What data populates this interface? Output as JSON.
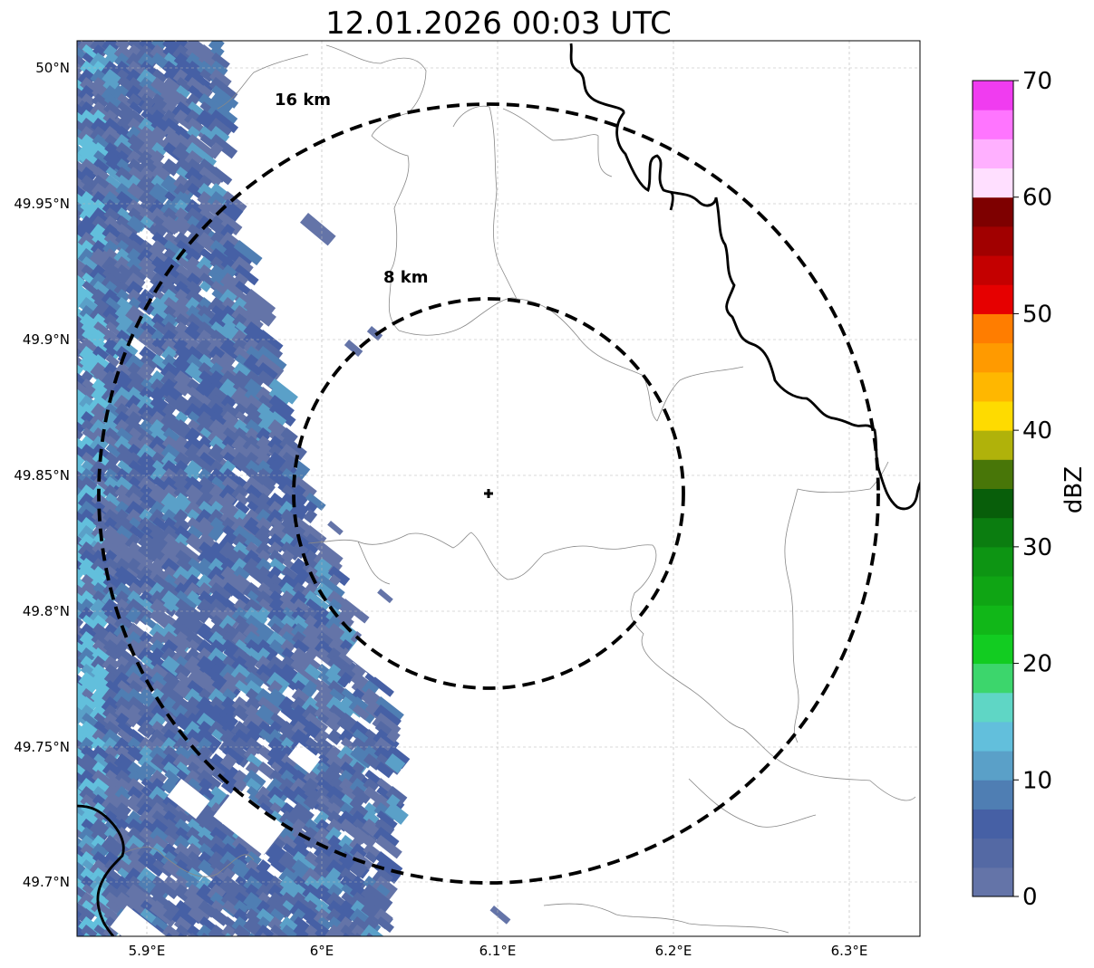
{
  "title": "12.01.2026 00:03 UTC",
  "map": {
    "lon_ticks": [
      "5.9°E",
      "6°E",
      "6.1°E",
      "6.2°E",
      "6.3°E"
    ],
    "lat_ticks": [
      "50°N",
      "49.95°N",
      "49.9°N",
      "49.85°N",
      "49.8°N",
      "49.75°N",
      "49.7°N"
    ],
    "rings": [
      {
        "label": "16 km",
        "radius_km": 16
      },
      {
        "label": "8 km",
        "radius_km": 8
      }
    ],
    "center_marker": "radar-site-cross"
  },
  "colorbar": {
    "label": "dBZ",
    "ticks": [
      "0",
      "10",
      "20",
      "30",
      "40",
      "50",
      "60",
      "70"
    ],
    "colors": [
      "#6474a8",
      "#5469a4",
      "#4660a5",
      "#4f7eb3",
      "#5aa0c8",
      "#62bfdc",
      "#5fd6c5",
      "#3cd66c",
      "#12cc21",
      "#11b718",
      "#0fa514",
      "#0d9513",
      "#0b7d10",
      "#085e0a",
      "#487608",
      "#b0b20a",
      "#fedb00",
      "#ffb700",
      "#ff9a00",
      "#ff7d00",
      "#e60000",
      "#c40000",
      "#a10000",
      "#7e0000",
      "#ffdfff",
      "#ffb0ff",
      "#ff75ff",
      "#f03cf0"
    ]
  },
  "chart_data": {
    "type": "heatmap",
    "title": "12.01.2026 00:03 UTC",
    "xlabel": "",
    "ylabel": "",
    "colorbar_label": "dBZ",
    "xlim": [
      5.86,
      6.34
    ],
    "ylim": [
      49.68,
      50.01
    ],
    "center": {
      "lon": 6.094,
      "lat": 49.843
    },
    "reflectivity_range": [
      0,
      70
    ],
    "observed_dbz_range": [
      2,
      15
    ],
    "echo_region": "western edge of map, roughly lon 5.86–6.05"
  }
}
